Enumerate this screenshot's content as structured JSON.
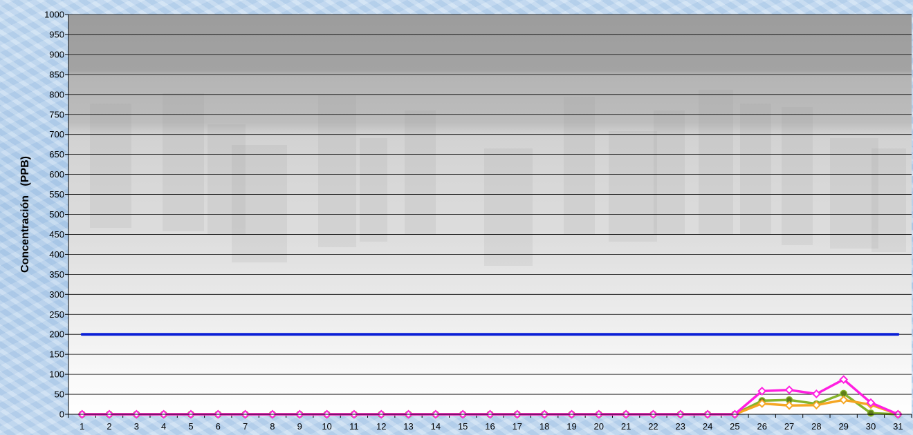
{
  "chart_data": {
    "type": "line",
    "title": "",
    "xlabel": "",
    "ylabel": "Concentración   (PPB)",
    "ylim": [
      0,
      1000
    ],
    "y_ticks": [
      0,
      50,
      100,
      150,
      200,
      250,
      300,
      350,
      400,
      450,
      500,
      550,
      600,
      650,
      700,
      750,
      800,
      850,
      900,
      950,
      1000
    ],
    "categories": [
      "1",
      "2",
      "3",
      "4",
      "5",
      "6",
      "7",
      "8",
      "9",
      "10",
      "11",
      "12",
      "13",
      "14",
      "15",
      "16",
      "17",
      "18",
      "19",
      "20",
      "21",
      "22",
      "23",
      "24",
      "25",
      "26",
      "27",
      "28",
      "29",
      "30",
      "31"
    ],
    "grid": true,
    "legend": "none",
    "series": [
      {
        "color": "#0a1fd6",
        "marker": "none",
        "values": [
          200,
          200,
          200,
          200,
          200,
          200,
          200,
          200,
          200,
          200,
          200,
          200,
          200,
          200,
          200,
          200,
          200,
          200,
          200,
          200,
          200,
          200,
          200,
          200,
          200,
          200,
          200,
          200,
          200,
          200,
          200
        ]
      },
      {
        "color": "#86b32a",
        "marker": "circle",
        "values": [
          0,
          0,
          0,
          0,
          0,
          0,
          0,
          0,
          0,
          0,
          0,
          0,
          0,
          0,
          0,
          0,
          0,
          0,
          0,
          0,
          0,
          0,
          0,
          0,
          0,
          34,
          36,
          26,
          52,
          3,
          0
        ]
      },
      {
        "color": "#f5a623",
        "marker": "diamond",
        "values": [
          0,
          0,
          0,
          0,
          0,
          0,
          0,
          0,
          0,
          0,
          0,
          0,
          0,
          0,
          0,
          0,
          0,
          0,
          0,
          0,
          0,
          0,
          0,
          0,
          0,
          27,
          22,
          23,
          36,
          24,
          0
        ]
      },
      {
        "color": "#ff1fe0",
        "marker": "diamond",
        "values": [
          0,
          0,
          0,
          0,
          0,
          0,
          0,
          0,
          0,
          0,
          0,
          0,
          0,
          0,
          0,
          0,
          0,
          0,
          0,
          0,
          0,
          0,
          0,
          0,
          0,
          58,
          61,
          51,
          87,
          29,
          0
        ]
      }
    ]
  }
}
